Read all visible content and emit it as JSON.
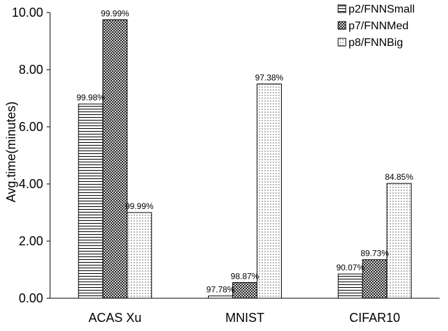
{
  "chart_data": {
    "type": "bar",
    "title": "",
    "xlabel": "",
    "ylabel": "Avg.time(minutes)",
    "ylim": [
      0,
      10
    ],
    "yticks": [
      "0.00",
      "2.00",
      "4.00",
      "6.00",
      "8.00",
      "10.00"
    ],
    "categories": [
      "ACAS Xu",
      "MNIST",
      "CIFAR10"
    ],
    "grid": false,
    "legend_position": "top-right",
    "series": [
      {
        "name": "p2/FNNSmall",
        "pattern": "horizontal-lines",
        "values": [
          6.8,
          0.08,
          0.85
        ],
        "labels": [
          "99.98%",
          "97.78%",
          "90.07%"
        ]
      },
      {
        "name": "p7/FNNMed",
        "pattern": "crosshatch",
        "values": [
          9.75,
          0.55,
          1.35
        ],
        "labels": [
          "99.99%",
          "98.87%",
          "89.73%"
        ]
      },
      {
        "name": "p8/FNNBig",
        "pattern": "dots",
        "values": [
          3.0,
          7.5,
          4.02
        ],
        "labels": [
          "99.99%",
          "97.38%",
          "84.85%"
        ]
      }
    ]
  }
}
